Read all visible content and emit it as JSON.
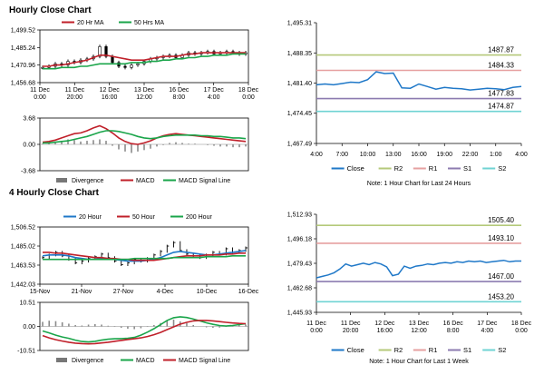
{
  "sections": {
    "hourly_title": "Hourly Close Chart",
    "four_hourly_title": "4 Hourly Close Chart"
  },
  "chart_data": [
    {
      "id": "hourly-price",
      "type": "line",
      "legend": [
        {
          "name": "20 Hr MA",
          "color": "#c0202a"
        },
        {
          "name": "50 Hrs MA",
          "color": "#1aa54a"
        }
      ],
      "yticks": [
        "1,499.52",
        "1,485.24",
        "1,470.96",
        "1,456.68"
      ],
      "xticks": [
        "11 Dec\n0:00",
        "11 Dec\n20:00",
        "12 Dec\n16:00",
        "13 Dec\n12:00",
        "16 Dec\n8:00",
        "17 Dec\n4:00",
        "18 Dec\n0:00"
      ],
      "ylim": [
        1456.68,
        1499.52
      ],
      "price_kind": "candle",
      "price": [
        1469,
        1470,
        1472,
        1471,
        1474,
        1473,
        1475,
        1476,
        1478,
        1486,
        1478,
        1473,
        1470,
        1469,
        1471,
        1472,
        1474,
        1476,
        1477,
        1478,
        1479,
        1477,
        1479,
        1481,
        1480,
        1481,
        1482,
        1480,
        1481,
        1482,
        1481,
        1480,
        1481
      ],
      "series": [
        {
          "name": "20 Hr MA",
          "color": "#c0202a",
          "values": [
            1470,
            1470,
            1471,
            1471,
            1472,
            1473,
            1474,
            1475,
            1477,
            1479,
            1479,
            1478,
            1477,
            1476,
            1475,
            1475,
            1475,
            1476,
            1477,
            1478,
            1478,
            1478,
            1479,
            1480,
            1480,
            1481,
            1481,
            1481,
            1481,
            1481,
            1481,
            1481,
            1481
          ]
        },
        {
          "name": "50 Hrs MA",
          "color": "#1aa54a",
          "values": [
            1468,
            1468,
            1468,
            1469,
            1469,
            1469,
            1470,
            1470,
            1471,
            1472,
            1472,
            1472,
            1472,
            1472,
            1473,
            1473,
            1473,
            1474,
            1474,
            1475,
            1475,
            1476,
            1476,
            1477,
            1477,
            1478,
            1478,
            1479,
            1479,
            1479,
            1480,
            1480,
            1480
          ]
        }
      ]
    },
    {
      "id": "hourly-macd",
      "type": "line",
      "legend": [
        {
          "name": "Divergence",
          "color": "#777777"
        },
        {
          "name": "MACD",
          "color": "#c0202a"
        },
        {
          "name": "MACD Signal Line",
          "color": "#1aa54a"
        }
      ],
      "yticks": [
        "3.68",
        "0.00",
        "-3.68"
      ],
      "ylim": [
        -3.68,
        3.68
      ],
      "divergence": [
        0.1,
        0.2,
        0.3,
        0.5,
        0.7,
        0.6,
        0.4,
        0.5,
        0.6,
        0.7,
        0.5,
        -0.2,
        -0.7,
        -1.0,
        -1.2,
        -1.0,
        -0.8,
        -0.6,
        -0.3,
        -0.1,
        0.2,
        0.3,
        0.2,
        0.1,
        0.1,
        0.0,
        -0.1,
        -0.2,
        -0.3,
        -0.3,
        -0.4,
        -0.4,
        -0.3
      ],
      "series": [
        {
          "name": "MACD",
          "color": "#c0202a",
          "values": [
            0.3,
            0.4,
            0.6,
            0.9,
            1.2,
            1.5,
            1.6,
            1.9,
            2.3,
            2.6,
            2.2,
            1.6,
            0.9,
            0.4,
            0.1,
            0.0,
            0.2,
            0.5,
            0.9,
            1.2,
            1.4,
            1.5,
            1.4,
            1.3,
            1.2,
            1.1,
            1.0,
            0.9,
            0.8,
            0.7,
            0.6,
            0.5,
            0.4
          ]
        },
        {
          "name": "MACD Signal Line",
          "color": "#1aa54a",
          "values": [
            0.2,
            0.2,
            0.3,
            0.4,
            0.5,
            0.7,
            0.9,
            1.1,
            1.4,
            1.7,
            1.9,
            1.9,
            1.8,
            1.6,
            1.4,
            1.1,
            0.9,
            0.8,
            0.9,
            1.1,
            1.2,
            1.3,
            1.3,
            1.3,
            1.3,
            1.2,
            1.2,
            1.1,
            1.1,
            1.0,
            0.9,
            0.9,
            0.8
          ]
        }
      ]
    },
    {
      "id": "hourly-sr",
      "type": "line",
      "yticks": [
        "1,495.31",
        "1,488.35",
        "1,481.40",
        "1,474.45",
        "1,467.49"
      ],
      "xticks": [
        "4:00",
        "7:00",
        "10:00",
        "13:00",
        "16:00",
        "19:00",
        "22:00",
        "1:00",
        "4:00"
      ],
      "ylim": [
        1467.49,
        1495.31
      ],
      "levels": [
        {
          "name": "R2",
          "value": 1487.87,
          "label": "1487.87",
          "color": "#b5c97a"
        },
        {
          "name": "R1",
          "value": 1484.33,
          "label": "1484.33",
          "color": "#e6a0a0"
        },
        {
          "name": "S1",
          "value": 1477.83,
          "label": "1477.83",
          "color": "#8c7bb0"
        },
        {
          "name": "S2",
          "value": 1474.87,
          "label": "1474.87",
          "color": "#6fd3d3"
        }
      ],
      "series": [
        {
          "name": "Close",
          "color": "#1f78c8",
          "values": [
            1481.0,
            1481.2,
            1481.0,
            1481.3,
            1481.6,
            1481.5,
            1482.2,
            1484.0,
            1483.6,
            1483.7,
            1480.3,
            1480.2,
            1481.2,
            1480.6,
            1480.0,
            1480.4,
            1480.2,
            1480.1,
            1479.8,
            1480.0,
            1480.2,
            1480.1,
            1479.9,
            1480.4,
            1480.6
          ]
        }
      ],
      "legend": [
        {
          "name": "Close",
          "color": "#1f78c8"
        },
        {
          "name": "R2",
          "color": "#b5c97a"
        },
        {
          "name": "R1",
          "color": "#e6a0a0"
        },
        {
          "name": "S1",
          "color": "#8c7bb0"
        },
        {
          "name": "S2",
          "color": "#6fd3d3"
        }
      ],
      "note": "Note: 1 Hour Chart for Last 24 Hours"
    },
    {
      "id": "fourhour-price",
      "type": "line",
      "legend": [
        {
          "name": "20 Hour",
          "color": "#1f78c8"
        },
        {
          "name": "50 Hour",
          "color": "#c0202a"
        },
        {
          "name": "200 Hour",
          "color": "#1aa54a"
        }
      ],
      "yticks": [
        "1,506.52",
        "1,485.02",
        "1,463.53",
        "1,442.03"
      ],
      "xticks": [
        "15-Nov",
        "21-Nov",
        "27-Nov",
        "4-Dec",
        "10-Dec",
        "16-Dec"
      ],
      "ylim": [
        1442.03,
        1506.52
      ],
      "price_kind": "bar",
      "price": [
        1472,
        1475,
        1478,
        1474,
        1470,
        1466,
        1468,
        1471,
        1473,
        1476,
        1472,
        1468,
        1464,
        1466,
        1470,
        1468,
        1471,
        1475,
        1479,
        1485,
        1489,
        1480,
        1476,
        1474,
        1472,
        1475,
        1478,
        1476,
        1482,
        1478,
        1480,
        1483
      ],
      "series": [
        {
          "name": "20 Hour",
          "color": "#1f78c8",
          "values": [
            1474,
            1475,
            1475,
            1475,
            1474,
            1472,
            1471,
            1470,
            1470,
            1471,
            1471,
            1470,
            1469,
            1468,
            1468,
            1468,
            1469,
            1470,
            1472,
            1475,
            1478,
            1479,
            1478,
            1477,
            1476,
            1475,
            1475,
            1476,
            1477,
            1478,
            1479,
            1480
          ]
        },
        {
          "name": "50 Hour",
          "color": "#c0202a",
          "values": [
            1478,
            1478,
            1477,
            1477,
            1476,
            1475,
            1474,
            1473,
            1472,
            1472,
            1471,
            1471,
            1470,
            1470,
            1469,
            1469,
            1469,
            1469,
            1470,
            1471,
            1472,
            1473,
            1474,
            1474,
            1474,
            1475,
            1475,
            1475,
            1476,
            1476,
            1477,
            1477
          ]
        },
        {
          "name": "200 Hour",
          "color": "#1aa54a",
          "values": [
            1470,
            1470,
            1470,
            1470,
            1470,
            1470,
            1470,
            1470,
            1470,
            1470,
            1470,
            1470,
            1470,
            1470,
            1471,
            1471,
            1471,
            1471,
            1471,
            1471,
            1472,
            1472,
            1472,
            1472,
            1472,
            1473,
            1473,
            1473,
            1473,
            1474,
            1474,
            1474
          ]
        }
      ]
    },
    {
      "id": "fourhour-macd",
      "type": "line",
      "legend": [
        {
          "name": "Divergence",
          "color": "#777777"
        },
        {
          "name": "MACD",
          "color": "#1aa54a"
        },
        {
          "name": "MACD Signal Line",
          "color": "#c0202a"
        }
      ],
      "yticks": [
        "10.51",
        "0.00",
        "-10.51"
      ],
      "ylim": [
        -10.51,
        10.51
      ],
      "divergence": [
        2.0,
        2.5,
        2.3,
        1.8,
        1.2,
        0.6,
        0.4,
        0.8,
        1.0,
        0.8,
        0.3,
        -0.2,
        -0.6,
        -1.0,
        -1.2,
        -0.8,
        -0.2,
        0.6,
        1.5,
        2.5,
        3.0,
        2.2,
        1.4,
        0.6,
        0.0,
        -0.4,
        -0.6,
        -0.5,
        -0.2,
        0.2,
        0.6,
        0.8
      ],
      "series": [
        {
          "name": "MACD",
          "color": "#1aa54a",
          "values": [
            -2.0,
            -2.8,
            -3.8,
            -4.6,
            -5.2,
            -6.0,
            -6.6,
            -6.8,
            -6.5,
            -6.0,
            -5.6,
            -5.4,
            -5.3,
            -5.2,
            -4.8,
            -3.8,
            -2.5,
            -1.0,
            0.8,
            2.6,
            3.8,
            4.2,
            3.9,
            3.2,
            2.4,
            1.6,
            0.9,
            0.4,
            0.2,
            0.4,
            0.8,
            1.2
          ]
        },
        {
          "name": "MACD Signal Line",
          "color": "#c0202a",
          "values": [
            -4.0,
            -5.0,
            -5.8,
            -6.4,
            -6.9,
            -7.3,
            -7.5,
            -7.6,
            -7.5,
            -7.2,
            -6.9,
            -6.5,
            -6.1,
            -5.7,
            -5.4,
            -5.0,
            -4.4,
            -3.6,
            -2.6,
            -1.4,
            -0.2,
            1.0,
            1.8,
            2.4,
            2.6,
            2.6,
            2.4,
            2.1,
            1.8,
            1.5,
            1.3,
            1.2
          ]
        }
      ]
    },
    {
      "id": "fourhour-sr",
      "type": "line",
      "yticks": [
        "1,512.93",
        "1,496.18",
        "1,479.43",
        "1,462.68",
        "1,445.93"
      ],
      "xticks": [
        "11 Dec\n0:00",
        "11 Dec\n20:00",
        "12 Dec\n16:00",
        "13 Dec\n12:00",
        "16 Dec\n8:00",
        "17 Dec\n4:00",
        "18 Dec\n0:00"
      ],
      "ylim": [
        1445.93,
        1512.93
      ],
      "levels": [
        {
          "name": "R2",
          "value": 1505.4,
          "label": "1505.40",
          "color": "#b5c97a"
        },
        {
          "name": "R1",
          "value": 1493.1,
          "label": "1493.10",
          "color": "#e6a0a0"
        },
        {
          "name": "S1",
          "value": 1467.0,
          "label": "1467.00",
          "color": "#8c7bb0"
        },
        {
          "name": "S2",
          "value": 1453.2,
          "label": "1453.20",
          "color": "#6fd3d3"
        }
      ],
      "series": [
        {
          "name": "Close",
          "color": "#1f78c8",
          "values": [
            1469.5,
            1470.5,
            1471.5,
            1473.0,
            1475.5,
            1479.0,
            1477.5,
            1478.5,
            1479.5,
            1478.5,
            1480.0,
            1479.0,
            1477.0,
            1471.0,
            1472.0,
            1477.5,
            1476.0,
            1477.5,
            1478.0,
            1479.0,
            1478.5,
            1479.5,
            1480.0,
            1479.5,
            1480.5,
            1480.0,
            1481.0,
            1480.5,
            1481.0,
            1480.0,
            1480.5,
            1481.0,
            1481.5,
            1480.5,
            1481.0,
            1481.0
          ]
        }
      ],
      "legend": [
        {
          "name": "Close",
          "color": "#1f78c8"
        },
        {
          "name": "R2",
          "color": "#b5c97a"
        },
        {
          "name": "R1",
          "color": "#e6a0a0"
        },
        {
          "name": "S1",
          "color": "#8c7bb0"
        },
        {
          "name": "S2",
          "color": "#6fd3d3"
        }
      ],
      "note": "Note: 1 Hour Chart for Last 1 Week"
    }
  ]
}
